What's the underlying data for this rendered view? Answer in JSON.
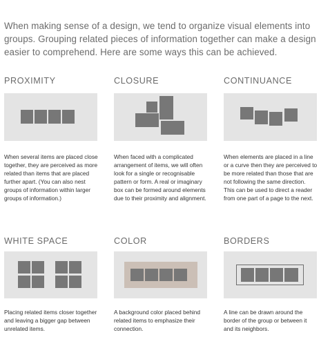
{
  "intro": "When making sense of a design, we tend to organize visual elements into groups. Grouping related pieces of information together can make a design easier to comprehend. Here are some ways this can be achieved.",
  "sections": {
    "proximity": {
      "title": "PROXIMITY",
      "text": "When several items are placed close together, they are perceived as more related than items that are placed further apart. (You can also nest groups of information within larger groups of information.)"
    },
    "closure": {
      "title": "CLOSURE",
      "text": "When faced with a complicated arrangement of items, we will often look for a single or recognisable pattern or form. A real or imaginary box can be formed around elements due to their proximity and alignment."
    },
    "continuance": {
      "title": "CONTINUANCE",
      "text": "When elements are placed in a line or a curve then they are perceived to be more related than those that are not following the same direction. This can be used to direct a reader from one part of a page to the next."
    },
    "white_space": {
      "title": "WHITE SPACE",
      "text": "Placing related items closer together and leaving a bigger gap between unrelated items."
    },
    "color": {
      "title": "COLOR",
      "text": "A background color placed behind related items to emphasize their connection."
    },
    "borders": {
      "title": "BORDERS",
      "text": "A line can be drawn around the border of the group or between it and its neighbors."
    }
  },
  "colors": {
    "panel": "#e4e4e4",
    "square": "#777777",
    "color_background": "#cbbfb6",
    "border_line": "#6d6d6d"
  }
}
